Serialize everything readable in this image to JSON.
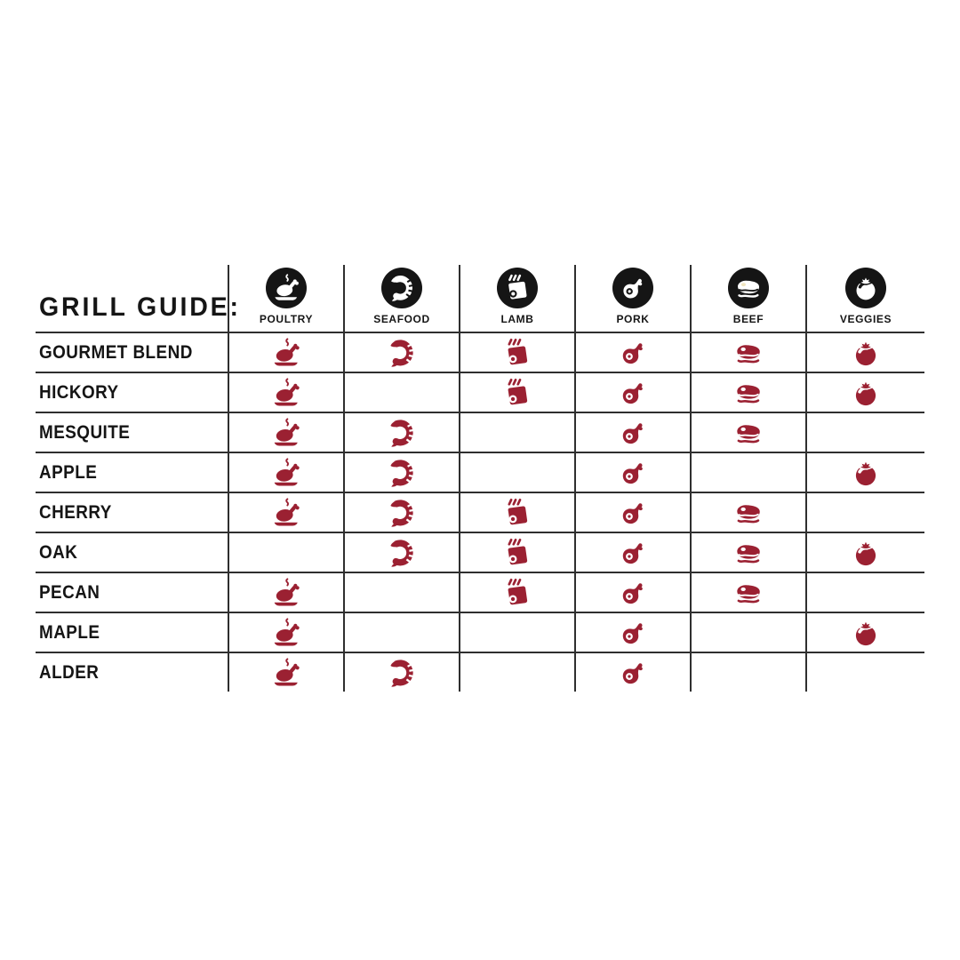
{
  "title": "GRILL GUIDE:",
  "colors": {
    "icon_red": "#9B2132",
    "icon_black": "#151515",
    "grid_line": "#2f2f2f",
    "background": "#ffffff"
  },
  "chart_data": {
    "type": "table",
    "title": "GRILL GUIDE:",
    "legend_position": "top",
    "grid": true,
    "columns": [
      {
        "id": "poultry",
        "label": "POULTRY",
        "icon": "poultry-icon"
      },
      {
        "id": "seafood",
        "label": "SEAFOOD",
        "icon": "shrimp-icon"
      },
      {
        "id": "lamb",
        "label": "LAMB",
        "icon": "lamb-chop-icon"
      },
      {
        "id": "pork",
        "label": "PORK",
        "icon": "ham-icon"
      },
      {
        "id": "beef",
        "label": "BEEF",
        "icon": "steak-icon"
      },
      {
        "id": "veggies",
        "label": "VEGGIES",
        "icon": "tomato-icon"
      }
    ],
    "rows": [
      {
        "label": "GOURMET BLEND",
        "pairings": [
          true,
          true,
          true,
          true,
          true,
          true
        ]
      },
      {
        "label": "HICKORY",
        "pairings": [
          true,
          false,
          true,
          true,
          true,
          true
        ]
      },
      {
        "label": "MESQUITE",
        "pairings": [
          true,
          true,
          false,
          true,
          true,
          false
        ]
      },
      {
        "label": "APPLE",
        "pairings": [
          true,
          true,
          false,
          true,
          false,
          true
        ]
      },
      {
        "label": "CHERRY",
        "pairings": [
          true,
          true,
          true,
          true,
          true,
          false
        ]
      },
      {
        "label": "OAK",
        "pairings": [
          false,
          true,
          true,
          true,
          true,
          true
        ]
      },
      {
        "label": "PECAN",
        "pairings": [
          true,
          false,
          true,
          true,
          true,
          false
        ]
      },
      {
        "label": "MAPLE",
        "pairings": [
          true,
          false,
          false,
          true,
          false,
          true
        ]
      },
      {
        "label": "ALDER",
        "pairings": [
          true,
          true,
          false,
          true,
          false,
          false
        ]
      }
    ]
  }
}
